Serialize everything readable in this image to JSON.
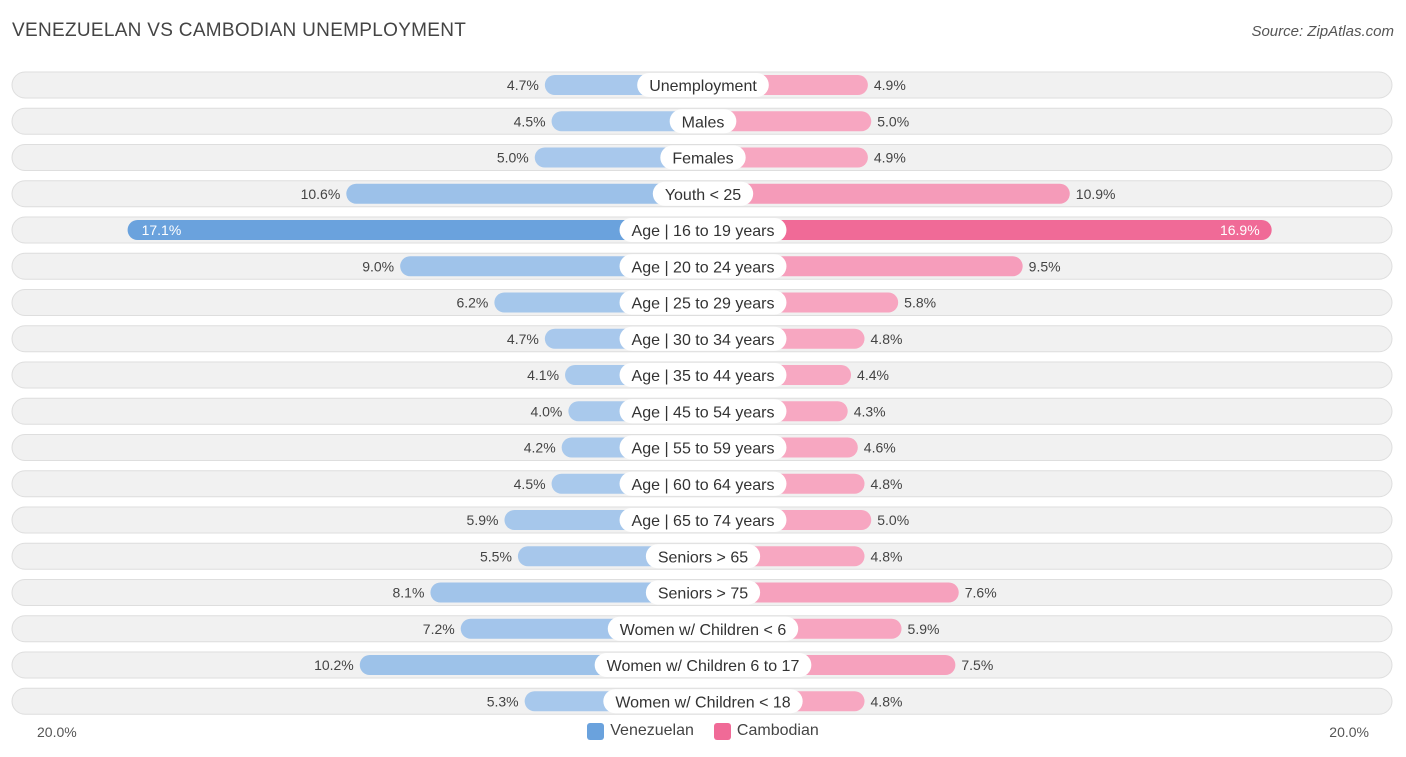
{
  "header": {
    "title": "VENEZUELAN VS CAMBODIAN UNEMPLOYMENT",
    "source": "Source: ZipAtlas.com"
  },
  "colors": {
    "venezuelan": "#6aa2dd",
    "venezuelan_light": "#a9c9ec",
    "cambodian": "#f06a97",
    "cambodian_light": "#f7a8c2"
  },
  "axis": {
    "left_label": "20.0%",
    "right_label": "20.0%"
  },
  "legend": {
    "venezuelan": "Venezuelan",
    "cambodian": "Cambodian"
  },
  "chart_data": {
    "type": "bar",
    "orientation": "diverging-horizontal",
    "title": "VENEZUELAN VS CAMBODIAN UNEMPLOYMENT",
    "xlim": [
      -20,
      20
    ],
    "categories": [
      "Unemployment",
      "Males",
      "Females",
      "Youth < 25",
      "Age | 16 to 19 years",
      "Age | 20 to 24 years",
      "Age | 25 to 29 years",
      "Age | 30 to 34 years",
      "Age | 35 to 44 years",
      "Age | 45 to 54 years",
      "Age | 55 to 59 years",
      "Age | 60 to 64 years",
      "Age | 65 to 74 years",
      "Seniors > 65",
      "Seniors > 75",
      "Women w/ Children < 6",
      "Women w/ Children 6 to 17",
      "Women w/ Children < 18"
    ],
    "series": [
      {
        "name": "Venezuelan",
        "values": [
          4.7,
          4.5,
          5.0,
          10.6,
          17.1,
          9.0,
          6.2,
          4.7,
          4.1,
          4.0,
          4.2,
          4.5,
          5.9,
          5.5,
          8.1,
          7.2,
          10.2,
          5.3
        ],
        "labels": [
          "4.7%",
          "4.5%",
          "5.0%",
          "10.6%",
          "17.1%",
          "9.0%",
          "6.2%",
          "4.7%",
          "4.1%",
          "4.0%",
          "4.2%",
          "4.5%",
          "5.9%",
          "5.5%",
          "8.1%",
          "7.2%",
          "10.2%",
          "5.3%"
        ]
      },
      {
        "name": "Cambodian",
        "values": [
          4.9,
          5.0,
          4.9,
          10.9,
          16.9,
          9.5,
          5.8,
          4.8,
          4.4,
          4.3,
          4.6,
          4.8,
          5.0,
          4.8,
          7.6,
          5.9,
          7.5,
          4.8
        ],
        "labels": [
          "4.9%",
          "5.0%",
          "4.9%",
          "10.9%",
          "16.9%",
          "9.5%",
          "5.8%",
          "4.8%",
          "4.4%",
          "4.3%",
          "4.6%",
          "4.8%",
          "5.0%",
          "4.8%",
          "7.6%",
          "5.9%",
          "7.5%",
          "4.8%"
        ]
      }
    ]
  }
}
